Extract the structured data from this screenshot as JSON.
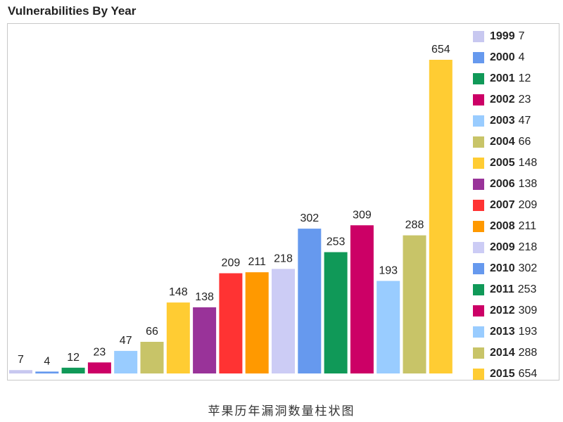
{
  "caption": "苹果历年漏洞数量柱状图",
  "chart_data": {
    "type": "bar",
    "title": "Vulnerabilities By Year",
    "categories": [
      "1999",
      "2000",
      "2001",
      "2002",
      "2003",
      "2004",
      "2005",
      "2006",
      "2007",
      "2008",
      "2009",
      "2010",
      "2011",
      "2012",
      "2013",
      "2014",
      "2015"
    ],
    "values": [
      7,
      4,
      12,
      23,
      47,
      66,
      148,
      138,
      209,
      211,
      218,
      302,
      253,
      309,
      193,
      288,
      654
    ],
    "colors": [
      "#c8c8f0",
      "#6699ee",
      "#109958",
      "#cc0066",
      "#99ccff",
      "#c8c468",
      "#ffcc33",
      "#993399",
      "#ff3333",
      "#ff9900",
      "#ccccf5",
      "#6699ee",
      "#109958",
      "#cc0066",
      "#99ccff",
      "#c8c468",
      "#ffcc33"
    ],
    "ylim": [
      0,
      720
    ],
    "xlabel": "",
    "ylabel": "",
    "legend_position": "right",
    "grid": false,
    "data_labels": true
  }
}
